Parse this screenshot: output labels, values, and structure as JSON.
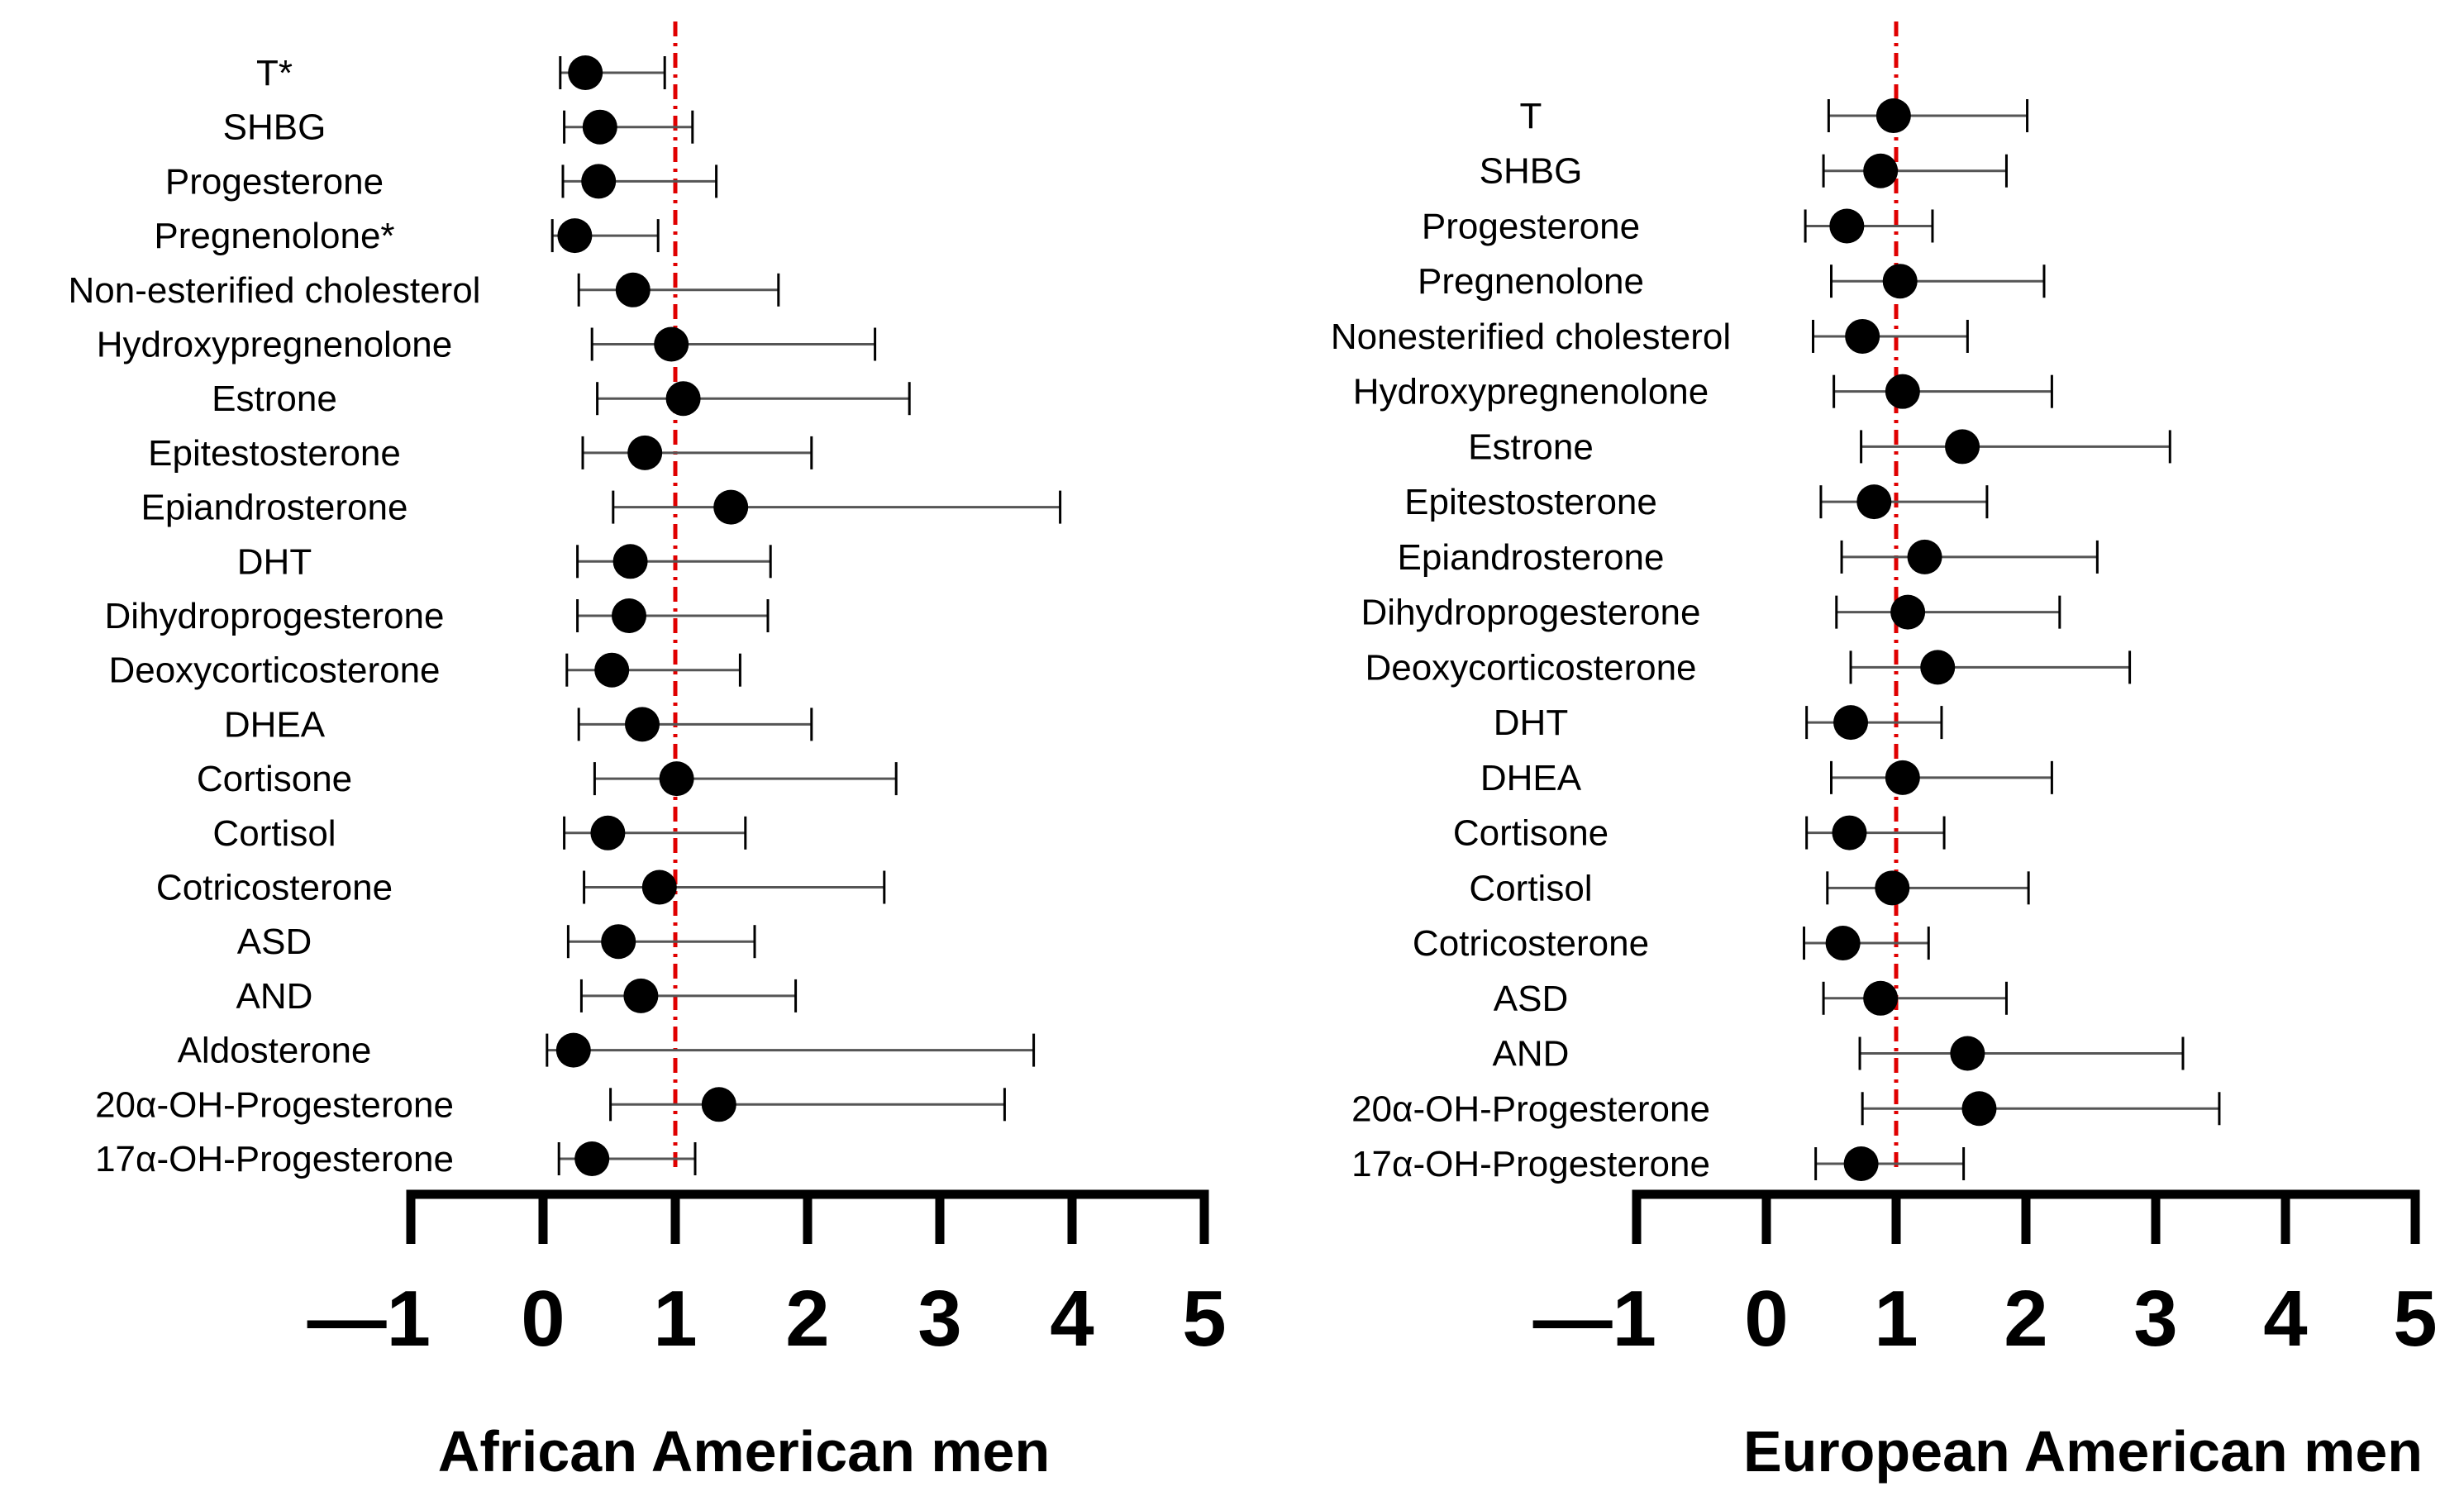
{
  "chart_data": [
    {
      "type": "forest",
      "title": "African American men",
      "xlabel": "African American men",
      "xlim": [
        -1,
        5
      ],
      "x_ticks": [
        -1,
        0,
        1,
        2,
        3,
        4,
        5
      ],
      "x_tick_labels": [
        "—1",
        "0",
        "1",
        "2",
        "3",
        "4",
        "5"
      ],
      "reference_line": 1,
      "reference_line_color": "#e00000",
      "marker_color": "#000000",
      "rows": [
        {
          "label": "T*",
          "estimate": 0.32,
          "lower": 0.13,
          "upper": 0.92
        },
        {
          "label": "SHBG",
          "estimate": 0.43,
          "lower": 0.16,
          "upper": 1.13
        },
        {
          "label": "Progesterone",
          "estimate": 0.42,
          "lower": 0.15,
          "upper": 1.31
        },
        {
          "label": "Pregnenolone*",
          "estimate": 0.24,
          "lower": 0.07,
          "upper": 0.87
        },
        {
          "label": "Non-esterified cholesterol",
          "estimate": 0.68,
          "lower": 0.27,
          "upper": 1.78
        },
        {
          "label": "Hydroxypregnenolone",
          "estimate": 0.97,
          "lower": 0.37,
          "upper": 2.51
        },
        {
          "label": "Estrone",
          "estimate": 1.06,
          "lower": 0.41,
          "upper": 2.77
        },
        {
          "label": "Epitestosterone",
          "estimate": 0.77,
          "lower": 0.3,
          "upper": 2.03
        },
        {
          "label": "Epiandrosterone",
          "estimate": 1.42,
          "lower": 0.53,
          "upper": 3.91
        },
        {
          "label": "DHT",
          "estimate": 0.66,
          "lower": 0.26,
          "upper": 1.72
        },
        {
          "label": "Dihydroprogesterone",
          "estimate": 0.65,
          "lower": 0.26,
          "upper": 1.7
        },
        {
          "label": "Deoxycorticosterone",
          "estimate": 0.52,
          "lower": 0.18,
          "upper": 1.49
        },
        {
          "label": "DHEA",
          "estimate": 0.75,
          "lower": 0.27,
          "upper": 2.03
        },
        {
          "label": "Cortisone",
          "estimate": 1.01,
          "lower": 0.39,
          "upper": 2.67
        },
        {
          "label": "Cortisol",
          "estimate": 0.49,
          "lower": 0.16,
          "upper": 1.53
        },
        {
          "label": "Cotricosterone",
          "estimate": 0.88,
          "lower": 0.31,
          "upper": 2.58
        },
        {
          "label": "ASD",
          "estimate": 0.57,
          "lower": 0.19,
          "upper": 1.6
        },
        {
          "label": "AND",
          "estimate": 0.74,
          "lower": 0.29,
          "upper": 1.91
        },
        {
          "label": "Aldosterone",
          "estimate": 0.23,
          "lower": 0.03,
          "upper": 3.71
        },
        {
          "label": "20α-OH-Progesterone",
          "estimate": 1.33,
          "lower": 0.51,
          "upper": 3.49
        },
        {
          "label": "17α-OH-Progesterone",
          "estimate": 0.37,
          "lower": 0.12,
          "upper": 1.15
        }
      ]
    },
    {
      "type": "forest",
      "title": "European American men",
      "xlabel": "European American men",
      "xlim": [
        -1,
        5
      ],
      "x_ticks": [
        -1,
        0,
        1,
        2,
        3,
        4,
        5
      ],
      "x_tick_labels": [
        "—1",
        "0",
        "1",
        "2",
        "3",
        "4",
        "5"
      ],
      "reference_line": 1,
      "reference_line_color": "#e00000",
      "marker_color": "#000000",
      "rows": [
        {
          "label": "T",
          "estimate": 0.98,
          "lower": 0.48,
          "upper": 2.01
        },
        {
          "label": "SHBG",
          "estimate": 0.88,
          "lower": 0.44,
          "upper": 1.85
        },
        {
          "label": "Progesterone",
          "estimate": 0.62,
          "lower": 0.3,
          "upper": 1.28
        },
        {
          "label": "Pregnenolone",
          "estimate": 1.03,
          "lower": 0.5,
          "upper": 2.14
        },
        {
          "label": "Nonesterified cholesterol",
          "estimate": 0.74,
          "lower": 0.36,
          "upper": 1.55
        },
        {
          "label": "Hydroxypregnenolone",
          "estimate": 1.05,
          "lower": 0.52,
          "upper": 2.2
        },
        {
          "label": "Estrone",
          "estimate": 1.51,
          "lower": 0.73,
          "upper": 3.11
        },
        {
          "label": "Epitestosterone",
          "estimate": 0.83,
          "lower": 0.42,
          "upper": 1.7
        },
        {
          "label": "Epiandrosterone",
          "estimate": 1.22,
          "lower": 0.58,
          "upper": 2.55
        },
        {
          "label": "Dihydroprogesterone",
          "estimate": 1.09,
          "lower": 0.54,
          "upper": 2.26
        },
        {
          "label": "Deoxycorticosterone",
          "estimate": 1.32,
          "lower": 0.65,
          "upper": 2.8
        },
        {
          "label": "DHT",
          "estimate": 0.65,
          "lower": 0.31,
          "upper": 1.35
        },
        {
          "label": "DHEA",
          "estimate": 1.05,
          "lower": 0.5,
          "upper": 2.2
        },
        {
          "label": "Cortisone",
          "estimate": 0.64,
          "lower": 0.31,
          "upper": 1.37
        },
        {
          "label": "Cortisol",
          "estimate": 0.97,
          "lower": 0.47,
          "upper": 2.02
        },
        {
          "label": "Cotricosterone",
          "estimate": 0.59,
          "lower": 0.29,
          "upper": 1.25
        },
        {
          "label": "ASD",
          "estimate": 0.88,
          "lower": 0.44,
          "upper": 1.85
        },
        {
          "label": "AND",
          "estimate": 1.55,
          "lower": 0.72,
          "upper": 3.21
        },
        {
          "label": "20α-OH-Progesterone",
          "estimate": 1.64,
          "lower": 0.74,
          "upper": 3.49
        },
        {
          "label": "17α-OH-Progesterone",
          "estimate": 0.73,
          "lower": 0.38,
          "upper": 1.52
        }
      ]
    }
  ]
}
